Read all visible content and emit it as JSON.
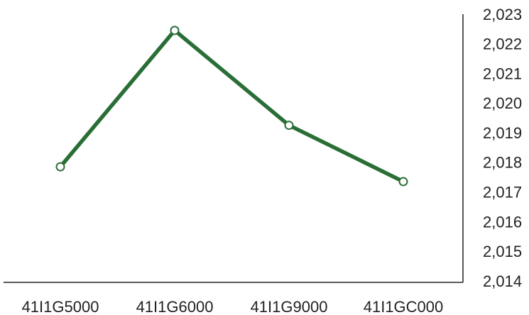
{
  "chart_data": {
    "type": "line",
    "title": "",
    "xlabel": "",
    "ylabel": "",
    "categories": [
      "41I1G5000",
      "41I1G6000",
      "41I1G9000",
      "41I1GC000"
    ],
    "series": [
      {
        "values": [
          2017.9,
          2022.5,
          2019.3,
          2017.4
        ],
        "color": "#2a6e37"
      }
    ],
    "ylim": [
      2014,
      2023
    ],
    "yticks": [
      2014,
      2015,
      2016,
      2017,
      2018,
      2019,
      2020,
      2021,
      2022,
      2023
    ],
    "ytick_labels": [
      "2,014",
      "2,015",
      "2,016",
      "2,017",
      "2,018",
      "2,019",
      "2,020",
      "2,021",
      "2,022",
      "2,023"
    ],
    "y_axis_position": "right",
    "grid": false,
    "legend": "none"
  }
}
